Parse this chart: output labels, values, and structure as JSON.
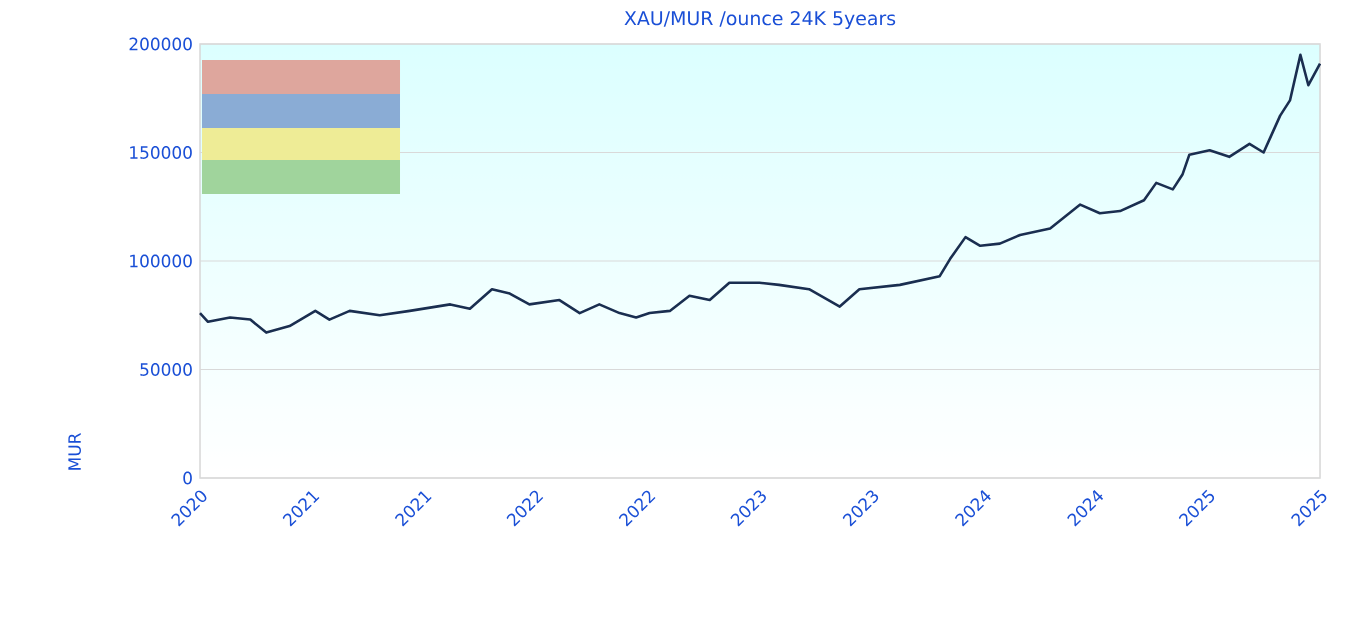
{
  "chart_data": {
    "type": "line",
    "title": "XAU/MUR /ounce 24K 5years",
    "ylabel": "MUR",
    "x": [
      "2020-10-20",
      "2020-11-02",
      "2020-12-08",
      "2021-01-10",
      "2021-02-05",
      "2021-03-15",
      "2021-04-26",
      "2021-05-19",
      "2021-06-21",
      "2021-08-09",
      "2021-09-27",
      "2021-12-02",
      "2022-01-03",
      "2022-02-08",
      "2022-03-09",
      "2022-04-10",
      "2022-05-29",
      "2022-07-01",
      "2022-08-02",
      "2022-09-04",
      "2022-10-01",
      "2022-10-23",
      "2022-11-25",
      "2022-12-27",
      "2023-01-29",
      "2023-03-02",
      "2023-04-20",
      "2023-05-22",
      "2023-07-10",
      "2023-08-29",
      "2023-09-30",
      "2023-12-05",
      "2024-02-08",
      "2024-02-25",
      "2024-03-21",
      "2024-04-14",
      "2024-05-16",
      "2024-06-18",
      "2024-08-06",
      "2024-09-24",
      "2024-10-26",
      "2024-11-28",
      "2025-01-06",
      "2025-01-26",
      "2025-02-22",
      "2025-03-10",
      "2025-03-21",
      "2025-04-23",
      "2025-05-25",
      "2025-06-27",
      "2025-07-20",
      "2025-08-16",
      "2025-09-01",
      "2025-09-18",
      "2025-10-01",
      "2025-10-20"
    ],
    "series": [
      {
        "color": "#1a2e50",
        "values": [
          76000,
          72000,
          74000,
          73000,
          67000,
          70000,
          77000,
          73000,
          77000,
          75000,
          77000,
          80000,
          78000,
          87000,
          85000,
          80000,
          82000,
          76000,
          80000,
          76000,
          74000,
          76000,
          77000,
          84000,
          82000,
          90000,
          90000,
          89000,
          87000,
          79000,
          87000,
          89000,
          93000,
          101000,
          111000,
          107000,
          108000,
          112000,
          115000,
          126000,
          122000,
          123000,
          128000,
          136000,
          133000,
          140000,
          149000,
          151000,
          148000,
          154000,
          150000,
          167000,
          174000,
          195000,
          181000,
          191000
        ]
      }
    ],
    "xlim": [
      "2020-10-20",
      "2025-10-20"
    ],
    "xticks": [
      {
        "value": "2020-10-20",
        "label": "2020"
      },
      {
        "value": "2021-04-20",
        "label": "2021"
      },
      {
        "value": "2021-10-20",
        "label": "2021"
      },
      {
        "value": "2022-04-20",
        "label": "2022"
      },
      {
        "value": "2022-10-20",
        "label": "2022"
      },
      {
        "value": "2023-04-20",
        "label": "2023"
      },
      {
        "value": "2023-10-20",
        "label": "2023"
      },
      {
        "value": "2024-04-20",
        "label": "2024"
      },
      {
        "value": "2024-10-20",
        "label": "2024"
      },
      {
        "value": "2025-04-20",
        "label": "2025"
      },
      {
        "value": "2025-10-20",
        "label": "2025"
      }
    ],
    "ylim": [
      0,
      200000
    ],
    "yticks": [
      0,
      50000,
      100000,
      150000,
      200000
    ],
    "grid": "y",
    "marker": "none",
    "line_style": "solid"
  }
}
